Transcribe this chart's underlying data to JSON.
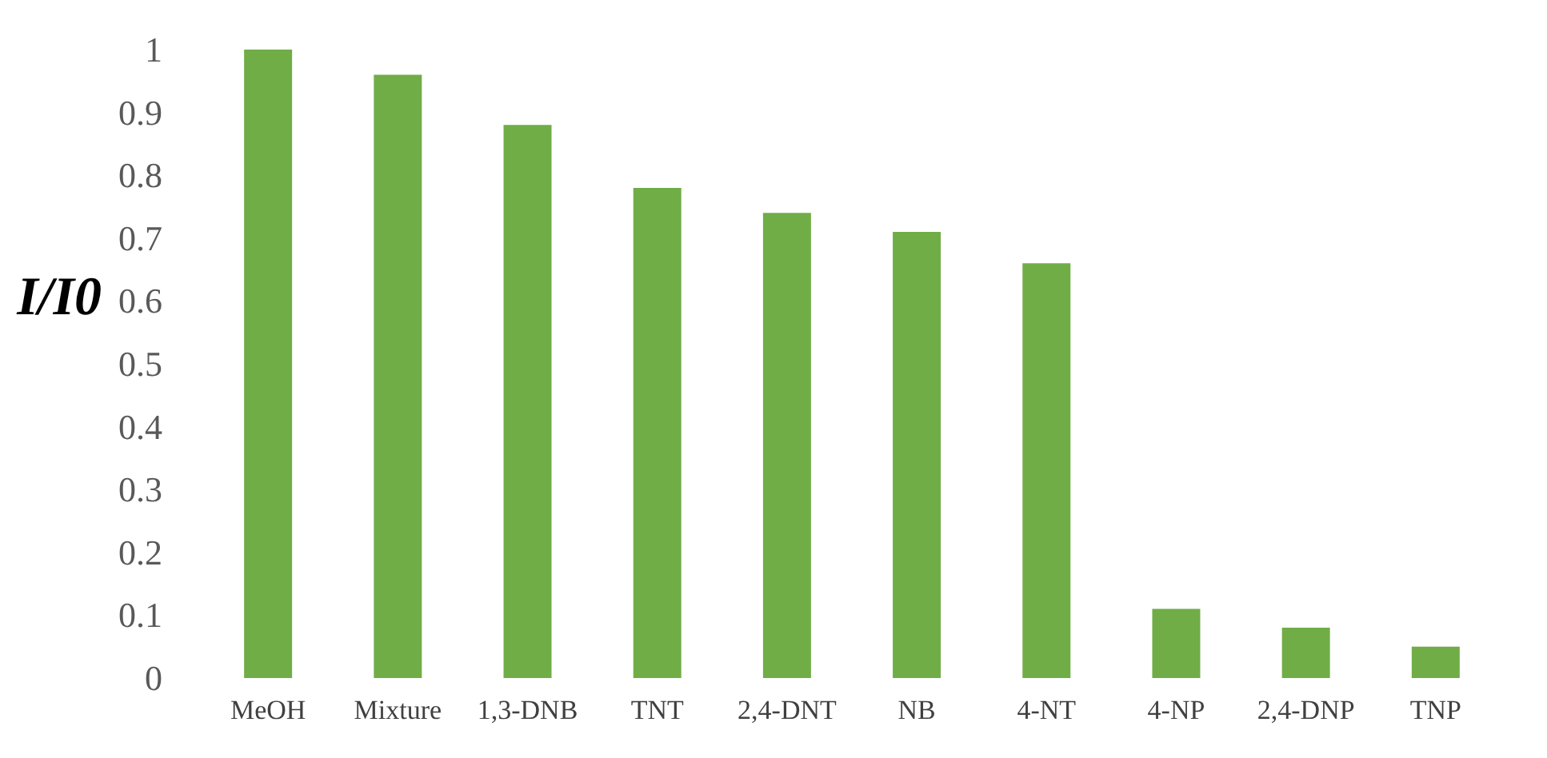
{
  "chart_data": {
    "type": "bar",
    "ylabel": "I/I0",
    "categories": [
      "MeOH",
      "Mixture",
      "1,3-DNB",
      "TNT",
      "2,4-DNT",
      "NB",
      "4-NT",
      "4-NP",
      "2,4-DNP",
      "TNP"
    ],
    "values": [
      1.0,
      0.96,
      0.88,
      0.78,
      0.74,
      0.71,
      0.66,
      0.11,
      0.08,
      0.05
    ],
    "color": "#70ad47",
    "ylim": [
      0,
      1
    ],
    "yticks": [
      0,
      0.1,
      0.2,
      0.3,
      0.4,
      0.5,
      0.6,
      0.7,
      0.8,
      0.9,
      1
    ],
    "grid": false
  }
}
